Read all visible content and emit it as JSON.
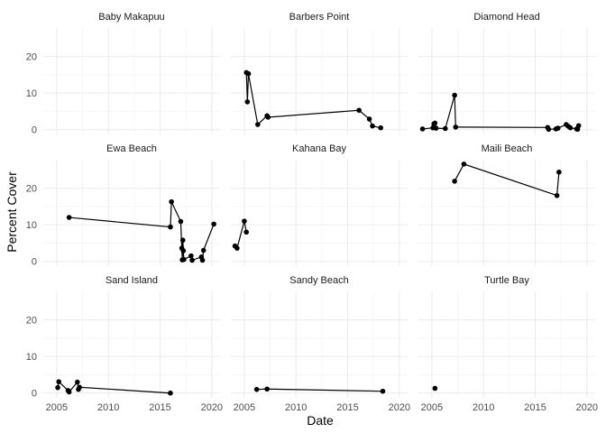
{
  "chart_data": {
    "type": "line",
    "xlabel": "Date",
    "ylabel": "Percent Cover",
    "xlim": [
      2003.7,
      2020.8
    ],
    "ylim": [
      -1.3,
      27.8
    ],
    "x_ticks": [
      2005,
      2010,
      2015,
      2020
    ],
    "x_tick_labels": [
      "2005",
      "2010",
      "2015",
      "2020"
    ],
    "y_ticks": [
      0,
      10,
      20
    ],
    "y_tick_labels": [
      "0",
      "10",
      "20"
    ],
    "grid": true,
    "colors": {
      "line": "#000000",
      "point": "#000000",
      "major_grid": "#ebebeb",
      "minor_grid": "#f5f5f5"
    },
    "panels": [
      {
        "name": "Baby Makapuu",
        "x": [],
        "y": []
      },
      {
        "name": "Barbers Point",
        "x": [
          2005.2,
          2005.3,
          2005.4,
          2006.3,
          2007.2,
          2007.3,
          2016.1,
          2017.1,
          2017.4,
          2018.2
        ],
        "y": [
          15.6,
          7.6,
          15.3,
          1.4,
          3.8,
          3.4,
          5.3,
          2.9,
          1.0,
          0.5
        ]
      },
      {
        "name": "Diamond Head",
        "x": [
          2004.1,
          2005.1,
          2005.2,
          2005.3,
          2005.4,
          2006.3,
          2007.2,
          2007.3,
          2016.2,
          2016.3,
          2017.0,
          2017.2,
          2018.0,
          2018.2,
          2018.4,
          2019.0,
          2019.1,
          2019.2
        ],
        "y": [
          0.2,
          0.5,
          1.6,
          1.8,
          0.4,
          0.3,
          9.4,
          0.7,
          0.6,
          0.1,
          0.2,
          0.4,
          1.4,
          0.9,
          0.5,
          0.2,
          0.1,
          1.1
        ]
      },
      {
        "name": "Ewa Beach",
        "x": [
          2006.2,
          2016.0,
          2016.1,
          2017.0,
          2017.1,
          2017.15,
          2017.2,
          2017.25,
          2017.3,
          2018.0,
          2018.1,
          2019.0,
          2019.1,
          2019.2,
          2020.2
        ],
        "y": [
          12.0,
          9.4,
          16.3,
          10.9,
          3.6,
          0.4,
          5.8,
          2.9,
          0.5,
          1.5,
          0.3,
          1.2,
          0.3,
          3.0,
          10.2
        ]
      },
      {
        "name": "Kahana Bay",
        "x": [
          2004.1,
          2004.3,
          2005.0,
          2005.2
        ],
        "y": [
          4.2,
          3.6,
          11.0,
          8.0
        ]
      },
      {
        "name": "Maili Beach",
        "x": [
          2007.2,
          2008.1,
          2017.1,
          2017.3
        ],
        "y": [
          21.9,
          26.6,
          18.0,
          24.4
        ]
      },
      {
        "name": "Sand Island",
        "x": [
          2005.1,
          2005.2,
          2006.1,
          2006.2,
          2007.0,
          2007.1,
          2007.2,
          2016.0
        ],
        "y": [
          1.5,
          3.1,
          0.7,
          0.3,
          3.0,
          1.0,
          1.6,
          0.0
        ]
      },
      {
        "name": "Sandy Beach",
        "x": [
          2006.2,
          2007.2,
          2018.4
        ],
        "y": [
          1.0,
          1.1,
          0.5
        ]
      },
      {
        "name": "Turtle Bay",
        "x": [
          2005.3
        ],
        "y": [
          1.3
        ]
      }
    ]
  }
}
